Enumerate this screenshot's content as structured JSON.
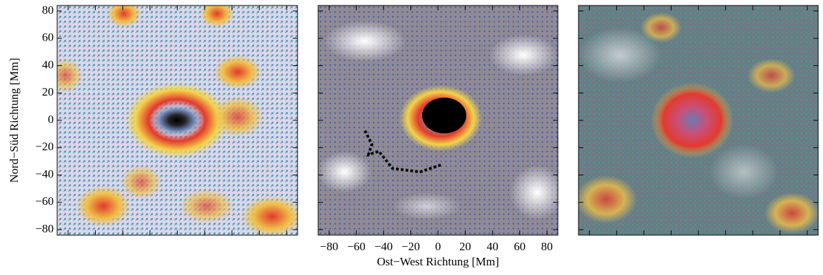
{
  "chart_data": [
    {
      "type": "vector-field",
      "xlim": [
        -88,
        88
      ],
      "ylim": [
        -84,
        84
      ],
      "xticks": [
        -80,
        -60,
        -40,
        -20,
        0,
        20,
        40,
        60,
        80
      ],
      "yticks": [
        {
          "value": 80,
          "label": "80"
        },
        {
          "value": 60,
          "label": "60"
        },
        {
          "value": 40,
          "label": "40"
        },
        {
          "value": 20,
          "label": "20"
        },
        {
          "value": 0,
          "label": "0"
        },
        {
          "value": -20,
          "label": "−20"
        },
        {
          "value": -40,
          "label": "−40"
        },
        {
          "value": -60,
          "label": "−60"
        },
        {
          "value": -80,
          "label": "−80"
        }
      ],
      "ylabel": "Nord−Süd Richtung [Mm]"
    },
    {
      "type": "vector-field",
      "xlim": [
        -88,
        88
      ],
      "ylim": [
        -84,
        84
      ],
      "xticks": [
        {
          "value": -80,
          "label": "−80"
        },
        {
          "value": -60,
          "label": "−60"
        },
        {
          "value": -40,
          "label": "−40"
        },
        {
          "value": -20,
          "label": "−20"
        },
        {
          "value": 0,
          "label": "0"
        },
        {
          "value": 20,
          "label": "20"
        },
        {
          "value": 40,
          "label": "40"
        },
        {
          "value": 60,
          "label": "60"
        },
        {
          "value": 80,
          "label": "80"
        }
      ],
      "yticks": [
        80,
        60,
        40,
        20,
        0,
        -20,
        -40,
        -60,
        -80
      ],
      "xlabel": "Ost−West Richtung [Mm]"
    },
    {
      "type": "vector-field",
      "xlim": [
        -88,
        88
      ],
      "ylim": [
        -84,
        84
      ],
      "xticks": [
        -80,
        -60,
        -40,
        -20,
        0,
        20,
        40,
        60,
        80
      ],
      "yticks": [
        80,
        60,
        40,
        20,
        0,
        -20,
        -40,
        -60,
        -80
      ]
    }
  ]
}
